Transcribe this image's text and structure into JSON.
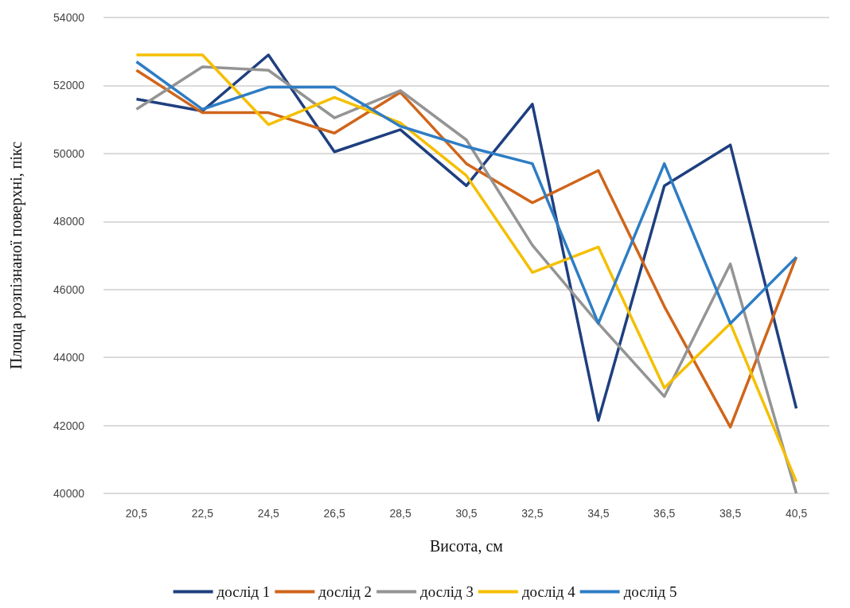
{
  "chart_data": {
    "type": "line",
    "xlabel": "Висота, см",
    "ylabel": "Площа розпізнаної поверхні, пікс",
    "categories": [
      "20,5",
      "22,5",
      "24,5",
      "26,5",
      "28,5",
      "30,5",
      "32,5",
      "34,5",
      "36,5",
      "38,5",
      "40,5"
    ],
    "series": [
      {
        "name": "дослід 1",
        "color": "#1f3f7f",
        "values": [
          51600,
          51250,
          52900,
          50050,
          50700,
          49050,
          51450,
          42150,
          49050,
          50250,
          42500
        ]
      },
      {
        "name": "дослід 2",
        "color": "#d0651a",
        "values": [
          52450,
          51200,
          51200,
          50600,
          51800,
          49700,
          48550,
          49500,
          45500,
          41950,
          46950
        ]
      },
      {
        "name": "дослід 3",
        "color": "#949494",
        "values": [
          51300,
          52550,
          52450,
          51050,
          51850,
          50400,
          47300,
          45000,
          42850,
          46750,
          40000
        ]
      },
      {
        "name": "дослід 4",
        "color": "#f5bf00",
        "values": [
          52900,
          52900,
          50850,
          51650,
          50900,
          49350,
          46500,
          47250,
          43100,
          45000,
          40350
        ]
      },
      {
        "name": "дослід 5",
        "color": "#2e7dc4",
        "values": [
          52700,
          51300,
          51950,
          51950,
          50800,
          50200,
          49700,
          45000,
          49700,
          45000,
          46950
        ]
      }
    ],
    "ylim": [
      40000,
      54000
    ],
    "yticks": [
      40000,
      42000,
      44000,
      46000,
      48000,
      50000,
      52000,
      54000
    ],
    "grid": "y",
    "legend": "bottom",
    "marker": "none",
    "line_style": "solid"
  }
}
